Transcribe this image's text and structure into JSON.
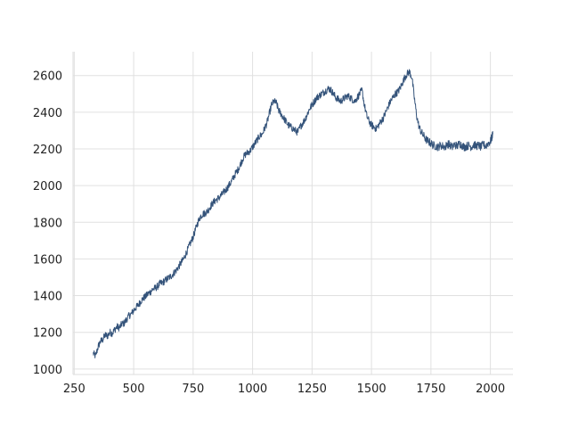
{
  "chart_data": {
    "type": "line",
    "title": "",
    "xlabel": "",
    "ylabel": "",
    "xlim": [
      245,
      2095
    ],
    "ylim": [
      970,
      2730
    ],
    "x_ticks": [
      250,
      500,
      750,
      1000,
      1250,
      1500,
      1750,
      2000
    ],
    "y_ticks": [
      1000,
      1200,
      1400,
      1600,
      1800,
      2000,
      2200,
      2400,
      2600
    ],
    "grid": true,
    "legend": "none",
    "colors": {
      "line": "#34537a",
      "grid": "#e0e0e0"
    },
    "series": [
      {
        "points": [
          [
            330,
            1085
          ],
          [
            340,
            1070
          ],
          [
            350,
            1120
          ],
          [
            360,
            1150
          ],
          [
            370,
            1160
          ],
          [
            380,
            1185
          ],
          [
            390,
            1180
          ],
          [
            400,
            1200
          ],
          [
            410,
            1195
          ],
          [
            420,
            1215
          ],
          [
            430,
            1230
          ],
          [
            440,
            1225
          ],
          [
            450,
            1245
          ],
          [
            460,
            1250
          ],
          [
            470,
            1270
          ],
          [
            480,
            1290
          ],
          [
            490,
            1300
          ],
          [
            500,
            1320
          ],
          [
            510,
            1335
          ],
          [
            520,
            1350
          ],
          [
            530,
            1370
          ],
          [
            540,
            1385
          ],
          [
            550,
            1395
          ],
          [
            560,
            1410
          ],
          [
            570,
            1420
          ],
          [
            580,
            1435
          ],
          [
            590,
            1440
          ],
          [
            600,
            1450
          ],
          [
            610,
            1465
          ],
          [
            620,
            1470
          ],
          [
            630,
            1480
          ],
          [
            640,
            1490
          ],
          [
            650,
            1500
          ],
          [
            660,
            1510
          ],
          [
            670,
            1525
          ],
          [
            680,
            1540
          ],
          [
            690,
            1560
          ],
          [
            700,
            1580
          ],
          [
            710,
            1600
          ],
          [
            720,
            1630
          ],
          [
            730,
            1660
          ],
          [
            740,
            1690
          ],
          [
            750,
            1720
          ],
          [
            760,
            1760
          ],
          [
            770,
            1800
          ],
          [
            780,
            1830
          ],
          [
            790,
            1845
          ],
          [
            800,
            1850
          ],
          [
            810,
            1860
          ],
          [
            820,
            1880
          ],
          [
            830,
            1900
          ],
          [
            840,
            1915
          ],
          [
            850,
            1925
          ],
          [
            860,
            1935
          ],
          [
            870,
            1950
          ],
          [
            880,
            1965
          ],
          [
            890,
            1980
          ],
          [
            900,
            2000
          ],
          [
            910,
            2020
          ],
          [
            920,
            2045
          ],
          [
            930,
            2070
          ],
          [
            940,
            2090
          ],
          [
            950,
            2120
          ],
          [
            960,
            2150
          ],
          [
            970,
            2170
          ],
          [
            980,
            2180
          ],
          [
            990,
            2190
          ],
          [
            1000,
            2210
          ],
          [
            1010,
            2230
          ],
          [
            1020,
            2250
          ],
          [
            1030,
            2270
          ],
          [
            1040,
            2280
          ],
          [
            1050,
            2310
          ],
          [
            1060,
            2340
          ],
          [
            1070,
            2390
          ],
          [
            1080,
            2440
          ],
          [
            1090,
            2460
          ],
          [
            1100,
            2450
          ],
          [
            1110,
            2410
          ],
          [
            1120,
            2390
          ],
          [
            1130,
            2370
          ],
          [
            1140,
            2350
          ],
          [
            1150,
            2330
          ],
          [
            1160,
            2320
          ],
          [
            1170,
            2310
          ],
          [
            1180,
            2300
          ],
          [
            1190,
            2290
          ],
          [
            1200,
            2320
          ],
          [
            1210,
            2340
          ],
          [
            1220,
            2360
          ],
          [
            1230,
            2390
          ],
          [
            1240,
            2420
          ],
          [
            1250,
            2440
          ],
          [
            1260,
            2460
          ],
          [
            1270,
            2480
          ],
          [
            1280,
            2490
          ],
          [
            1290,
            2500
          ],
          [
            1300,
            2510
          ],
          [
            1310,
            2520
          ],
          [
            1320,
            2530
          ],
          [
            1330,
            2520
          ],
          [
            1340,
            2500
          ],
          [
            1350,
            2480
          ],
          [
            1360,
            2470
          ],
          [
            1370,
            2460
          ],
          [
            1380,
            2470
          ],
          [
            1390,
            2480
          ],
          [
            1400,
            2490
          ],
          [
            1410,
            2480
          ],
          [
            1420,
            2470
          ],
          [
            1430,
            2460
          ],
          [
            1440,
            2480
          ],
          [
            1450,
            2500
          ],
          [
            1460,
            2520
          ],
          [
            1470,
            2440
          ],
          [
            1480,
            2380
          ],
          [
            1490,
            2350
          ],
          [
            1500,
            2330
          ],
          [
            1510,
            2320
          ],
          [
            1520,
            2310
          ],
          [
            1530,
            2330
          ],
          [
            1540,
            2350
          ],
          [
            1550,
            2370
          ],
          [
            1560,
            2400
          ],
          [
            1570,
            2430
          ],
          [
            1580,
            2460
          ],
          [
            1590,
            2480
          ],
          [
            1600,
            2500
          ],
          [
            1610,
            2510
          ],
          [
            1620,
            2530
          ],
          [
            1630,
            2560
          ],
          [
            1640,
            2590
          ],
          [
            1650,
            2610
          ],
          [
            1660,
            2620
          ],
          [
            1670,
            2590
          ],
          [
            1680,
            2480
          ],
          [
            1690,
            2380
          ],
          [
            1700,
            2320
          ],
          [
            1710,
            2290
          ],
          [
            1720,
            2270
          ],
          [
            1730,
            2250
          ],
          [
            1740,
            2240
          ],
          [
            1750,
            2230
          ],
          [
            1760,
            2220
          ],
          [
            1770,
            2215
          ],
          [
            1780,
            2210
          ],
          [
            1790,
            2220
          ],
          [
            1800,
            2215
          ],
          [
            1810,
            2210
          ],
          [
            1820,
            2230
          ],
          [
            1830,
            2220
          ],
          [
            1840,
            2210
          ],
          [
            1850,
            2225
          ],
          [
            1860,
            2215
          ],
          [
            1870,
            2230
          ],
          [
            1880,
            2220
          ],
          [
            1890,
            2210
          ],
          [
            1900,
            2215
          ],
          [
            1910,
            2220
          ],
          [
            1920,
            2210
          ],
          [
            1930,
            2225
          ],
          [
            1940,
            2215
          ],
          [
            1950,
            2220
          ],
          [
            1960,
            2210
          ],
          [
            1970,
            2225
          ],
          [
            1980,
            2215
          ],
          [
            1990,
            2230
          ],
          [
            2000,
            2240
          ],
          [
            2005,
            2260
          ],
          [
            2010,
            2280
          ]
        ]
      }
    ]
  }
}
